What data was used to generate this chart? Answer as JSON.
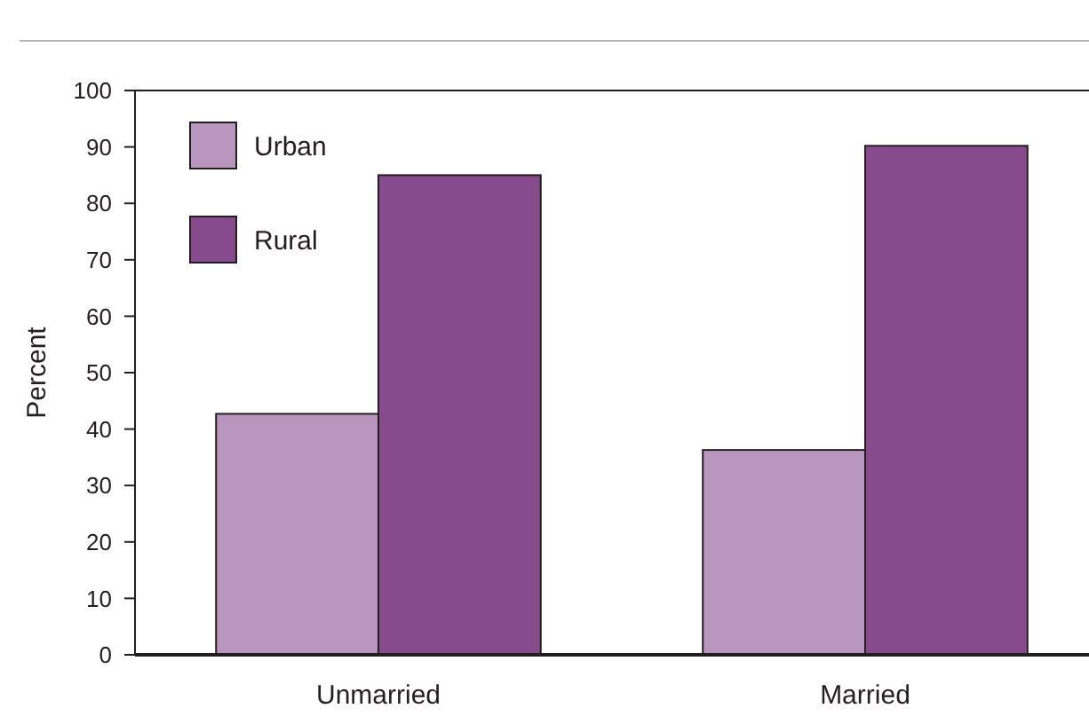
{
  "chart_data": {
    "type": "bar",
    "ylabel": "Percent",
    "categories": [
      "Unmarried",
      "Married"
    ],
    "series": [
      {
        "name": "Urban",
        "color": "#b896be",
        "values": [
          42.7,
          36.3
        ]
      },
      {
        "name": "Rural",
        "color": "#874a8c",
        "values": [
          85.0,
          90.2
        ]
      }
    ],
    "ylim": [
      0,
      100
    ],
    "yticks": [
      0,
      10,
      20,
      30,
      40,
      50,
      60,
      70,
      80,
      90,
      100
    ],
    "grid": false,
    "legend": "top left"
  }
}
